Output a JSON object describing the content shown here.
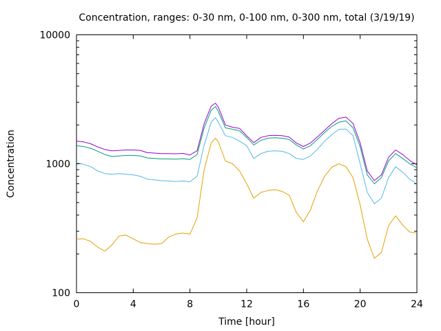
{
  "chart_data": {
    "type": "line",
    "title": "Concentration, ranges: 0-30 nm, 0-100 nm, 0-300 nm, total (3/19/19)",
    "xlabel": "Time [hour]",
    "ylabel": "Concentration",
    "xlim": [
      0,
      24
    ],
    "ylim": [
      100,
      10000
    ],
    "yscale": "log",
    "grid": false,
    "legend": "none",
    "xticks": [
      0,
      4,
      8,
      12,
      16,
      20,
      24
    ],
    "xtick_labels": [
      "0",
      "4",
      "8",
      "12",
      "16",
      "20",
      "24"
    ],
    "yticks": [
      100,
      1000,
      10000
    ],
    "ytick_labels": [
      "100",
      "1000",
      "10000"
    ],
    "x": [
      0,
      0.5,
      1,
      1.5,
      2,
      2.5,
      3,
      3.5,
      4,
      4.5,
      5,
      5.5,
      6,
      6.5,
      7,
      7.5,
      8,
      8.5,
      9,
      9.5,
      9.8,
      10,
      10.5,
      11,
      11.5,
      12,
      12.5,
      13,
      13.5,
      14,
      14.5,
      15,
      15.5,
      16,
      16.5,
      17,
      17.5,
      18,
      18.5,
      19,
      19.5,
      20,
      20.5,
      21,
      21.5,
      22,
      22.5,
      23,
      23.5,
      24
    ],
    "series": [
      {
        "color": "#e69f00",
        "values": [
          260,
          262,
          250,
          225,
          210,
          235,
          275,
          280,
          262,
          245,
          240,
          238,
          240,
          270,
          285,
          290,
          285,
          380,
          900,
          1450,
          1580,
          1480,
          1050,
          1000,
          880,
          700,
          540,
          600,
          620,
          630,
          610,
          570,
          420,
          355,
          440,
          620,
          800,
          940,
          1000,
          950,
          780,
          480,
          260,
          185,
          205,
          330,
          395,
          335,
          295,
          290
        ]
      },
      {
        "color": "#56b4e9",
        "values": [
          1020,
          990,
          950,
          880,
          840,
          830,
          840,
          830,
          820,
          800,
          760,
          750,
          740,
          735,
          730,
          735,
          725,
          800,
          1400,
          2100,
          2280,
          2100,
          1650,
          1600,
          1500,
          1380,
          1100,
          1200,
          1250,
          1260,
          1250,
          1200,
          1100,
          1080,
          1150,
          1300,
          1500,
          1680,
          1850,
          1860,
          1650,
          1000,
          600,
          490,
          540,
          780,
          950,
          860,
          760,
          700
        ]
      },
      {
        "color": "#009e73",
        "values": [
          1380,
          1360,
          1320,
          1250,
          1180,
          1140,
          1150,
          1160,
          1160,
          1150,
          1110,
          1100,
          1090,
          1090,
          1085,
          1095,
          1080,
          1180,
          1900,
          2600,
          2780,
          2550,
          1900,
          1850,
          1800,
          1600,
          1400,
          1520,
          1580,
          1590,
          1580,
          1540,
          1400,
          1300,
          1380,
          1550,
          1750,
          1950,
          2100,
          2150,
          1900,
          1350,
          820,
          700,
          780,
          1050,
          1200,
          1100,
          1000,
          930
        ]
      },
      {
        "color": "#9400d3",
        "values": [
          1500,
          1480,
          1430,
          1350,
          1290,
          1260,
          1270,
          1280,
          1280,
          1270,
          1220,
          1210,
          1200,
          1200,
          1195,
          1205,
          1170,
          1260,
          2050,
          2800,
          2950,
          2750,
          2000,
          1920,
          1880,
          1650,
          1460,
          1600,
          1650,
          1660,
          1650,
          1610,
          1450,
          1360,
          1450,
          1620,
          1820,
          2050,
          2250,
          2300,
          2050,
          1450,
          880,
          740,
          820,
          1120,
          1280,
          1180,
          1060,
          980
        ]
      }
    ]
  }
}
